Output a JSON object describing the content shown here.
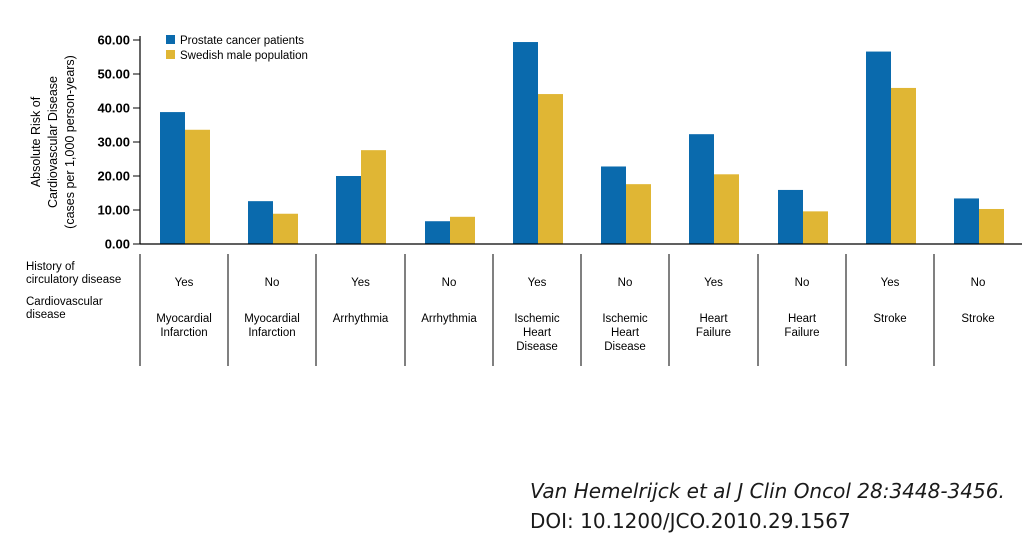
{
  "chart_data": {
    "type": "bar",
    "ylabel": [
      "Absolute Risk of",
      "Cardiovascular Disease",
      "(cases per 1,000 person-years)"
    ],
    "ylim": [
      0,
      60
    ],
    "yticks": [
      "0.00",
      "10.00",
      "20.00",
      "30.00",
      "40.00",
      "50.00",
      "60.00"
    ],
    "ytick_values": [
      0,
      10,
      20,
      30,
      40,
      50,
      60
    ],
    "legend_position": "top-left",
    "series": [
      {
        "name": "Prostate cancer patients",
        "color": "#0a6aad",
        "values": [
          38.8,
          12.6,
          20.0,
          6.7,
          59.4,
          22.8,
          32.3,
          15.9,
          56.6,
          13.4
        ]
      },
      {
        "name": "Swedish male population",
        "color": "#e0b634",
        "values": [
          33.6,
          8.9,
          27.6,
          8.0,
          44.1,
          17.6,
          20.5,
          9.6,
          45.9,
          10.3
        ]
      }
    ],
    "table": {
      "row_labels": [
        [
          "History of",
          "circulatory disease"
        ],
        [
          "Cardiovascular",
          "disease"
        ]
      ],
      "history": [
        "Yes",
        "No",
        "Yes",
        "No",
        "Yes",
        "No",
        "Yes",
        "No",
        "Yes",
        "No"
      ],
      "disease": [
        [
          "Myocardial",
          "Infarction"
        ],
        [
          "Myocardial",
          "Infarction"
        ],
        [
          "Arrhythmia"
        ],
        [
          "Arrhythmia"
        ],
        [
          "Ischemic",
          "Heart",
          "Disease"
        ],
        [
          "Ischemic",
          "Heart",
          "Disease"
        ],
        [
          "Heart",
          "Failure"
        ],
        [
          "Heart",
          "Failure"
        ],
        [
          "Stroke"
        ],
        [
          "Stroke"
        ]
      ]
    }
  },
  "citation": {
    "italic": "Van Hemelrijck et al J Clin Oncol 28:3448-3456.",
    "plain": " DOI: 10.1200/JCO.2010.29.1567"
  }
}
